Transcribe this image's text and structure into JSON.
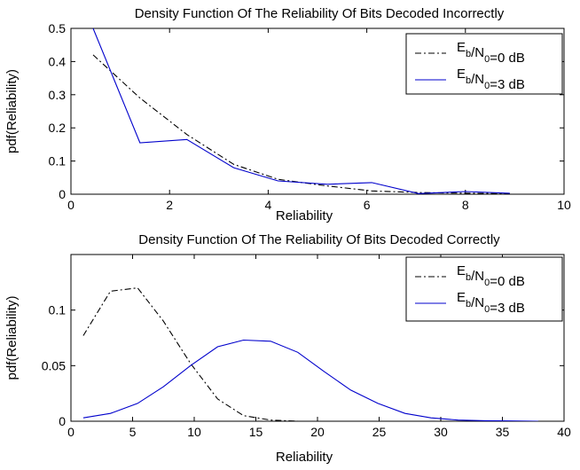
{
  "chart_data": [
    {
      "type": "line",
      "title": "Density Function Of The Reliability Of Bits Decoded Incorrectly",
      "xlabel": "Reliability",
      "ylabel": "pdf(Reliability)",
      "xlim": [
        0,
        10
      ],
      "ylim": [
        0,
        0.5
      ],
      "xticks": [
        "0",
        "2",
        "4",
        "6",
        "8",
        "10"
      ],
      "yticks": [
        "0",
        "0.1",
        "0.2",
        "0.3",
        "0.4",
        "0.5"
      ],
      "grid": false,
      "legend": "top-right",
      "series": [
        {
          "name": "Eb/N0=0 dB",
          "legend_main": "E",
          "legend_sub1": "b",
          "legend_mid": "/N",
          "legend_sub2": "0",
          "legend_tail": "=0 dB",
          "color": "#000000",
          "dash": "dashdot",
          "x": [
            0.45,
            1.4,
            2.35,
            3.3,
            4.2,
            5.2,
            6.1,
            7.05,
            8.0,
            8.9
          ],
          "y": [
            0.42,
            0.29,
            0.18,
            0.09,
            0.045,
            0.025,
            0.01,
            0.005,
            0.003,
            0.002
          ]
        },
        {
          "name": "Eb/N0=3 dB",
          "legend_main": "E",
          "legend_sub1": "b",
          "legend_mid": "/N",
          "legend_sub2": "0",
          "legend_tail": "=3 dB",
          "color": "#0000cc",
          "dash": "solid",
          "x": [
            0.45,
            1.4,
            2.35,
            3.3,
            4.2,
            5.2,
            6.1,
            7.05,
            8.0,
            8.9
          ],
          "y": [
            0.5,
            0.155,
            0.165,
            0.08,
            0.04,
            0.03,
            0.035,
            0.002,
            0.008,
            0.003
          ]
        }
      ]
    },
    {
      "type": "line",
      "title": "Density Function Of The Reliability Of Bits Decoded Correctly",
      "xlabel": "Reliability",
      "ylabel": "pdf(Reliability)",
      "xlim": [
        0,
        40
      ],
      "ylim": [
        0,
        0.15
      ],
      "xticks": [
        "0",
        "5",
        "10",
        "15",
        "20",
        "25",
        "30",
        "35",
        "40"
      ],
      "yticks": [
        "0",
        "0.05",
        "0.1"
      ],
      "ytick_values": [
        0,
        0.05,
        0.1
      ],
      "grid": false,
      "legend": "top-right",
      "series": [
        {
          "name": "Eb/N0=0 dB",
          "legend_main": "E",
          "legend_sub1": "b",
          "legend_mid": "/N",
          "legend_sub2": "0",
          "legend_tail": "=0 dB",
          "color": "#000000",
          "dash": "dashdot",
          "x": [
            1,
            3.2,
            5.4,
            7.5,
            9.7,
            11.9,
            14.0,
            16.2,
            18.4
          ],
          "y": [
            0.077,
            0.117,
            0.12,
            0.09,
            0.052,
            0.02,
            0.005,
            0.001,
            0.0
          ]
        },
        {
          "name": "Eb/N0=3 dB",
          "legend_main": "E",
          "legend_sub1": "b",
          "legend_mid": "/N",
          "legend_sub2": "0",
          "legend_tail": "=3 dB",
          "color": "#0000cc",
          "dash": "solid",
          "x": [
            1,
            3.2,
            5.4,
            7.5,
            9.7,
            11.9,
            14.0,
            16.2,
            18.4,
            20.5,
            22.7,
            24.9,
            27.1,
            29.2,
            31.4,
            33.6,
            35.7,
            37.9
          ],
          "y": [
            0.003,
            0.007,
            0.016,
            0.031,
            0.05,
            0.067,
            0.073,
            0.072,
            0.062,
            0.045,
            0.028,
            0.016,
            0.007,
            0.003,
            0.001,
            0.0005,
            0.0002,
            0.0
          ]
        }
      ]
    }
  ]
}
